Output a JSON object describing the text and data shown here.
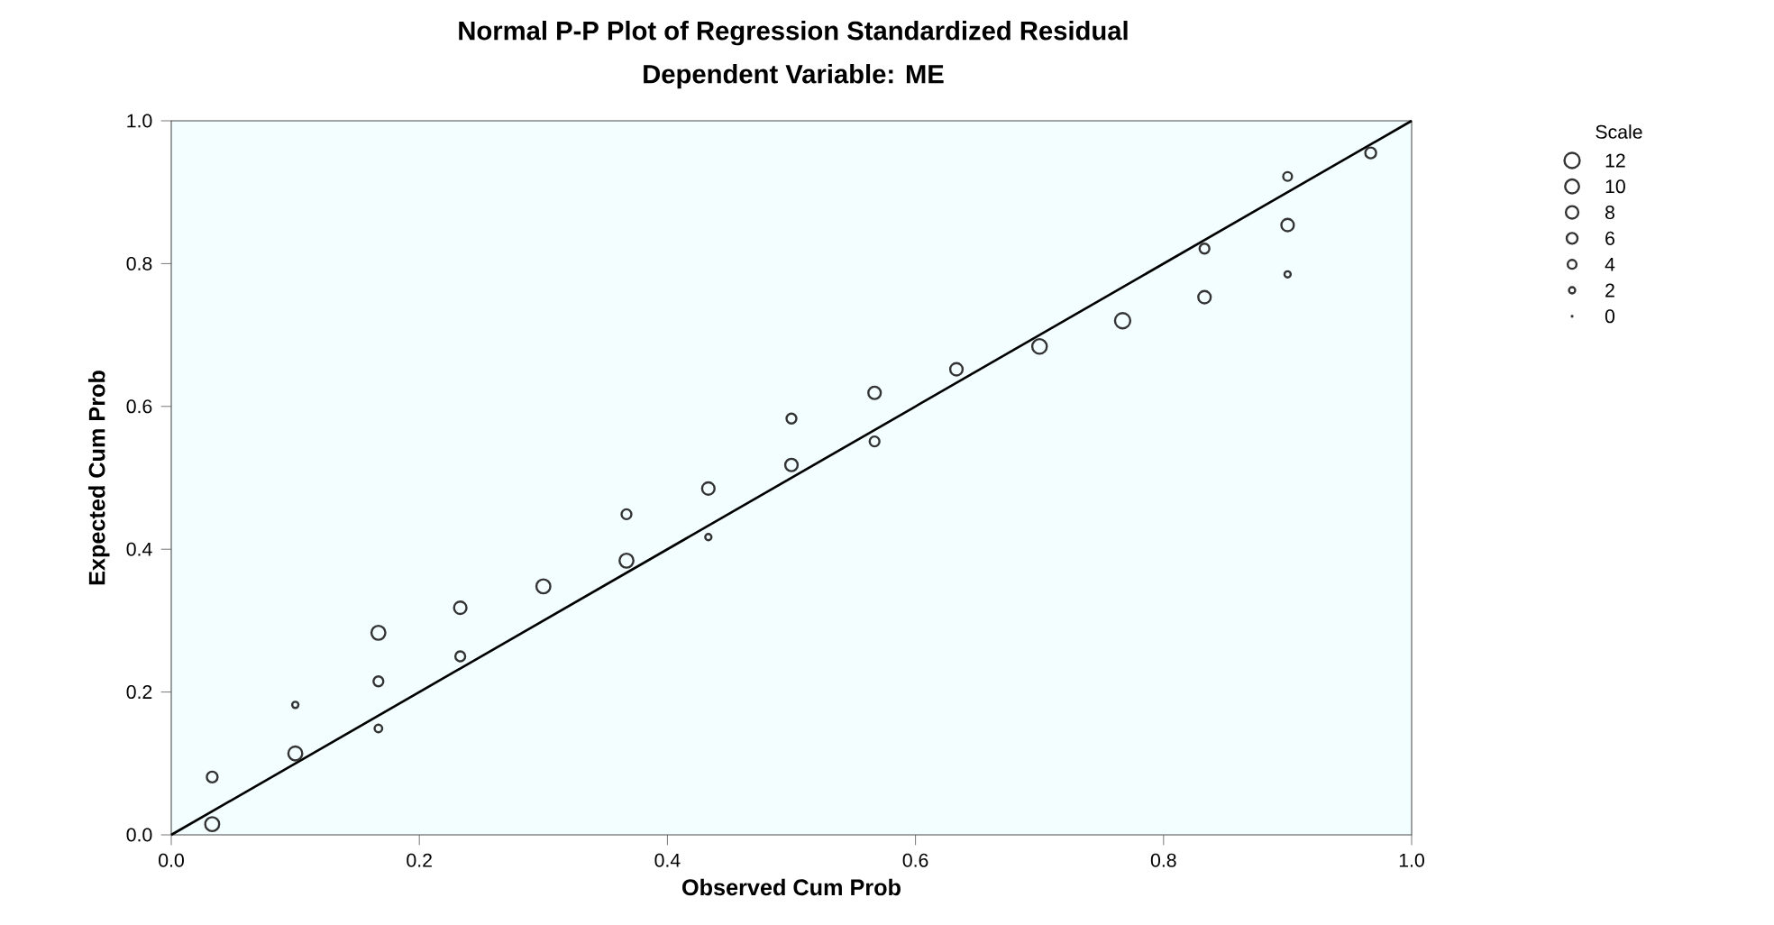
{
  "chart_data": {
    "type": "bubble",
    "title": "Normal P-P Plot of Regression Standardized Residual",
    "subtitle": "Dependent Variable: ME",
    "xlabel": "Observed Cum Prob",
    "ylabel": "Expected Cum Prob",
    "legend_title": "Scale",
    "size_legend": [
      12,
      10,
      8,
      6,
      4,
      2,
      0
    ],
    "xlim": [
      0,
      1
    ],
    "ylim": [
      0,
      1
    ],
    "xticks": [
      {
        "value": 0,
        "label": "0.0"
      },
      0.2,
      0.4,
      0.6,
      0.8,
      {
        "value": 1,
        "label": "1.0"
      }
    ],
    "yticks": [
      {
        "value": 0,
        "label": "0.0"
      },
      0.2,
      0.4,
      0.6,
      0.8,
      {
        "value": 1,
        "label": "1.0"
      }
    ],
    "grid": false,
    "marker": "circle",
    "series": [
      {
        "type": "bubble",
        "color": "#333333",
        "x": [
          0.033,
          0.033,
          0.1,
          0.1,
          0.167,
          0.167,
          0.167,
          0.233,
          0.233,
          0.3,
          0.367,
          0.367,
          0.433,
          0.433,
          0.5,
          0.5,
          0.567,
          0.567,
          0.633,
          0.7,
          0.767,
          0.833,
          0.833,
          0.9,
          0.9,
          0.9,
          0.967
        ],
        "values": [
          0.015,
          0.081,
          0.114,
          0.182,
          0.283,
          0.215,
          0.149,
          0.318,
          0.25,
          0.348,
          0.384,
          0.449,
          0.485,
          0.417,
          0.518,
          0.583,
          0.619,
          0.551,
          0.652,
          0.684,
          0.72,
          0.753,
          0.821,
          0.854,
          0.785,
          0.922,
          0.955
        ],
        "sizes": [
          10,
          6,
          10,
          2,
          10,
          5,
          3,
          8,
          5,
          10,
          10,
          5,
          8,
          2,
          8,
          5,
          8,
          5,
          8,
          11,
          12,
          8,
          5,
          8,
          2,
          4,
          6
        ]
      },
      {
        "type": "line",
        "color": "#000000",
        "marker": "none",
        "x": [
          0,
          1
        ],
        "values": [
          0,
          1
        ]
      }
    ]
  }
}
